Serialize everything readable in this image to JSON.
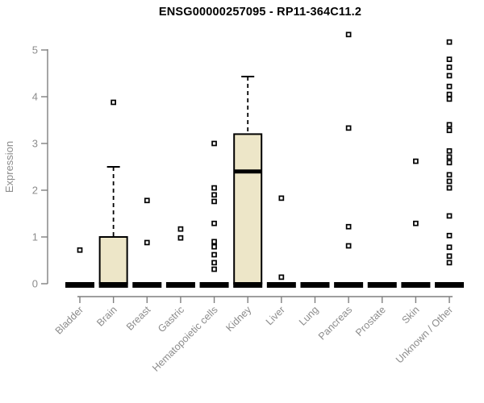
{
  "title": "ENSG00000257095 - RP11-364C11.2",
  "chart_data": {
    "type": "box",
    "title": "ENSG00000257095 - RP11-364C11.2",
    "xlabel": "",
    "ylabel": "Expression",
    "ylim": [
      0,
      5
    ],
    "yticks": [
      0,
      1,
      2,
      3,
      4,
      5
    ],
    "grid": false,
    "legend": "none",
    "colors": {
      "box_fill": "#ede6c8",
      "box_stroke": "#000000",
      "median": "#000000",
      "axis": "#7f7f7f",
      "tick_label": "#8c8c8c",
      "title": "#000000",
      "point_stroke": "#000000",
      "point_fill": "#ffffff",
      "background": "#ffffff"
    },
    "categories": [
      "Bladder",
      "Brain",
      "Breast",
      "Gastric",
      "Hematopoietic cells",
      "Kidney",
      "Liver",
      "Lung",
      "Pancreas",
      "Prostate",
      "Skin",
      "Unknown / Other"
    ],
    "series": [
      {
        "category": "Bladder",
        "q1": 0,
        "median": 0,
        "q3": 0,
        "whisker_low": 0,
        "whisker_high": 0,
        "points": [
          0.72
        ]
      },
      {
        "category": "Brain",
        "q1": 0,
        "median": 0,
        "q3": 1.0,
        "whisker_low": 0,
        "whisker_high": 2.5,
        "points": [
          3.88
        ]
      },
      {
        "category": "Breast",
        "q1": 0,
        "median": 0,
        "q3": 0,
        "whisker_low": 0,
        "whisker_high": 0,
        "points": [
          1.78,
          0.88
        ]
      },
      {
        "category": "Gastric",
        "q1": 0,
        "median": 0,
        "q3": 0,
        "whisker_low": 0,
        "whisker_high": 0,
        "points": [
          1.17,
          0.98
        ]
      },
      {
        "category": "Hematopoietic cells",
        "q1": 0,
        "median": 0,
        "q3": 0,
        "whisker_low": 0,
        "whisker_high": 0,
        "points": [
          3.0,
          2.05,
          1.9,
          1.76,
          1.29,
          0.9,
          0.79,
          0.62,
          0.45,
          0.31
        ]
      },
      {
        "category": "Kidney",
        "q1": 0,
        "median": 2.4,
        "q3": 3.2,
        "whisker_low": 0,
        "whisker_high": 4.43,
        "points": []
      },
      {
        "category": "Liver",
        "q1": 0,
        "median": 0,
        "q3": 0,
        "whisker_low": 0,
        "whisker_high": 0,
        "points": [
          1.83,
          0.14
        ]
      },
      {
        "category": "Lung",
        "q1": 0,
        "median": 0,
        "q3": 0,
        "whisker_low": 0,
        "whisker_high": 0,
        "points": []
      },
      {
        "category": "Pancreas",
        "q1": 0,
        "median": 0,
        "q3": 0,
        "whisker_low": 0,
        "whisker_high": 0,
        "points": [
          5.33,
          3.33,
          1.22,
          0.81
        ]
      },
      {
        "category": "Prostate",
        "q1": 0,
        "median": 0,
        "q3": 0,
        "whisker_low": 0,
        "whisker_high": 0,
        "points": []
      },
      {
        "category": "Skin",
        "q1": 0,
        "median": 0,
        "q3": 0,
        "whisker_low": 0,
        "whisker_high": 0,
        "points": [
          2.62,
          1.29
        ]
      },
      {
        "category": "Unknown / Other",
        "q1": 0,
        "median": 0,
        "q3": 0,
        "whisker_low": 0,
        "whisker_high": 0,
        "points": [
          5.17,
          4.8,
          4.63,
          4.45,
          4.22,
          4.05,
          3.95,
          3.4,
          3.28,
          2.84,
          2.71,
          2.59,
          2.33,
          2.19,
          2.05,
          1.45,
          1.03,
          0.78,
          0.59,
          0.45
        ]
      }
    ]
  }
}
